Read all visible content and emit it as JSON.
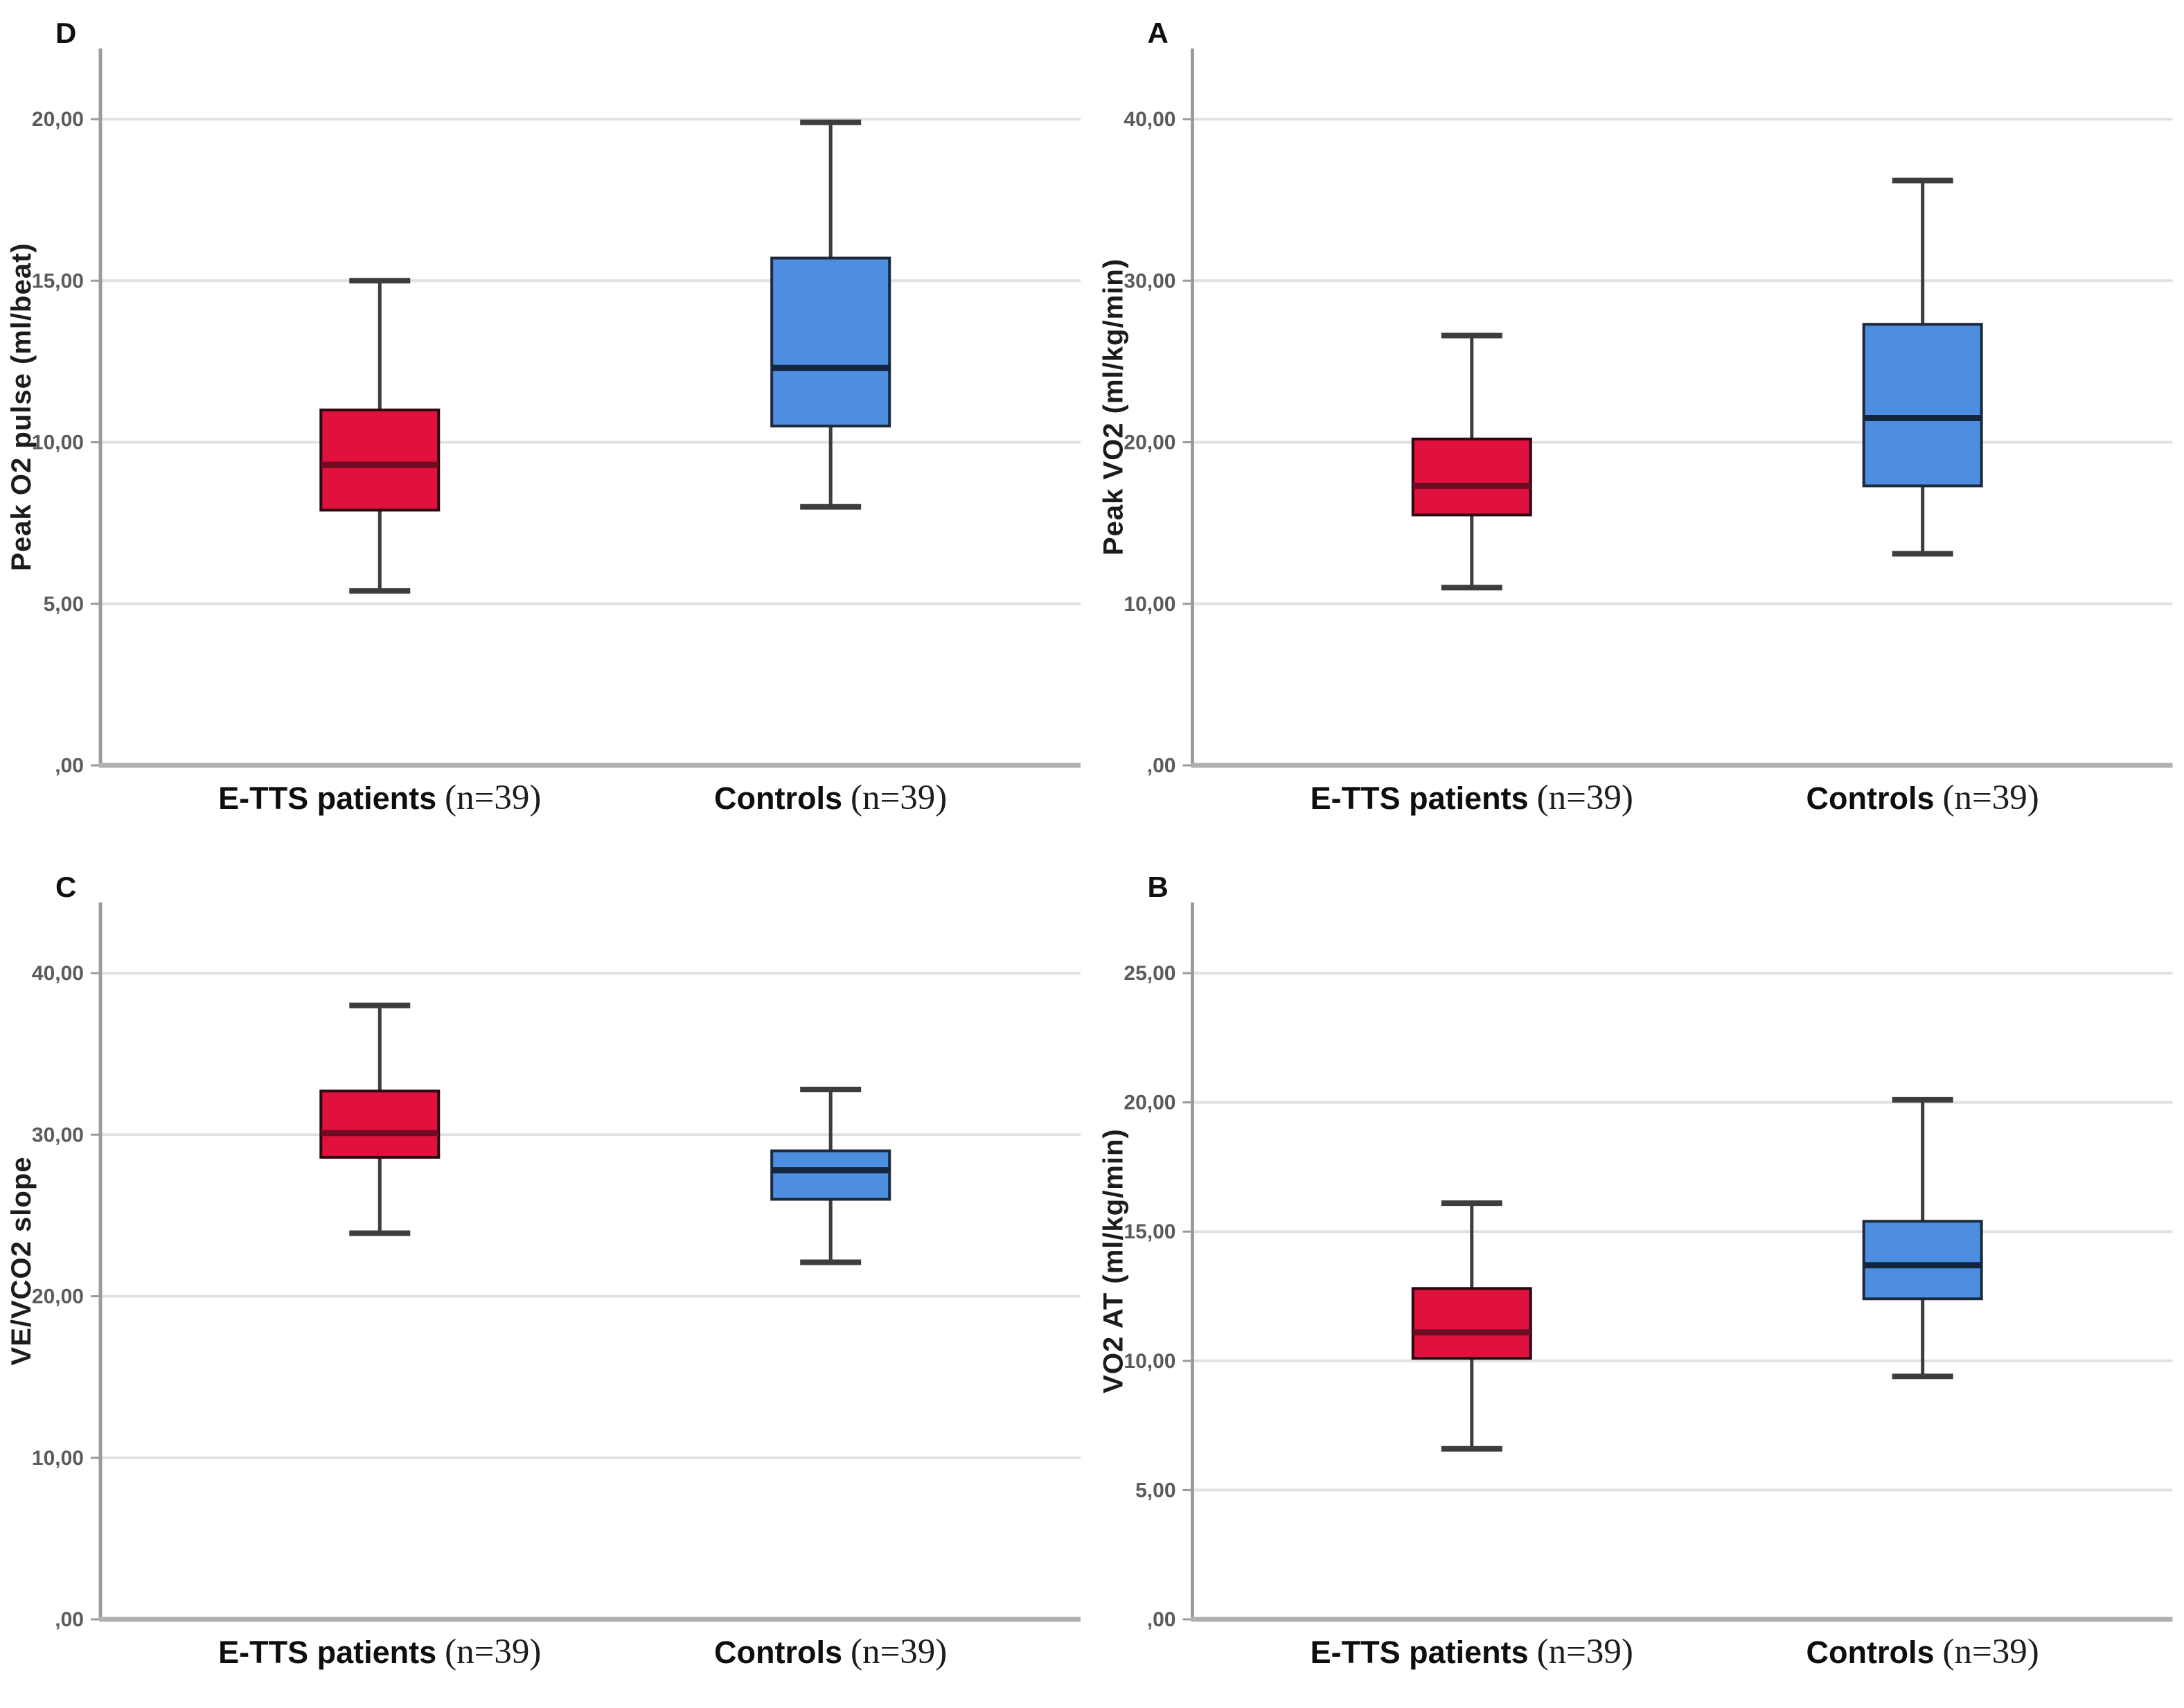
{
  "figure": {
    "description": "Four-panel SPSS-style box plot figure comparing E-TTS patients vs Controls on cardiopulmonary exercise testing variables",
    "groups": [
      {
        "name": "E-TTS patients",
        "n_label": "(n=39)",
        "color": "#e0113d"
      },
      {
        "name": "Controls",
        "n_label": "(n=39)",
        "color": "#4d8ee1"
      }
    ]
  },
  "chart_data": [
    {
      "type": "box",
      "panel_letter": "D",
      "grid_position": "top-left",
      "title": "",
      "xlabel": "",
      "ylabel": "Peak O2 pulse (ml/beat)",
      "ylim": [
        0,
        22.5
      ],
      "grid": true,
      "yticks": {
        "values": [
          0,
          5,
          10,
          15,
          20
        ],
        "labels": [
          ",00",
          "5,00",
          "10,00",
          "15,00",
          "20,00"
        ]
      },
      "categories": [
        {
          "name": "E-TTS patients",
          "suffix": "(n=39)"
        },
        {
          "name": "Controls",
          "suffix": "(n=39)"
        }
      ],
      "series": [
        {
          "name": "E-TTS patients",
          "fill": "#e0113d",
          "stroke": "#2e0711",
          "median_color": "#6e0c24",
          "box": {
            "min": 5.4,
            "q1": 7.9,
            "median": 9.3,
            "q3": 11.0,
            "max": 15.0
          }
        },
        {
          "name": "Controls",
          "fill": "#4d8ee1",
          "stroke": "#1b2a3c",
          "median_color": "#13263e",
          "box": {
            "min": 8.0,
            "q1": 10.5,
            "median": 12.3,
            "q3": 15.7,
            "max": 19.9
          }
        }
      ]
    },
    {
      "type": "box",
      "panel_letter": "A",
      "grid_position": "top-right",
      "title": "",
      "xlabel": "",
      "ylabel": "Peak VO2 (ml/kg/min)",
      "ylim": [
        0,
        45
      ],
      "grid": true,
      "yticks": {
        "values": [
          0,
          10,
          20,
          30,
          40
        ],
        "labels": [
          ",00",
          "10,00",
          "20,00",
          "30,00",
          "40,00"
        ]
      },
      "categories": [
        {
          "name": "E-TTS patients",
          "suffix": "(n=39)"
        },
        {
          "name": "Controls",
          "suffix": "(n=39)"
        }
      ],
      "series": [
        {
          "name": "E-TTS patients",
          "fill": "#e0113d",
          "stroke": "#2e0711",
          "median_color": "#6e0c24",
          "box": {
            "min": 11.0,
            "q1": 15.5,
            "median": 17.3,
            "q3": 20.2,
            "max": 26.6
          }
        },
        {
          "name": "Controls",
          "fill": "#4d8ee1",
          "stroke": "#1b2a3c",
          "median_color": "#13263e",
          "box": {
            "min": 13.1,
            "q1": 17.3,
            "median": 21.5,
            "q3": 27.3,
            "max": 36.2
          }
        }
      ]
    },
    {
      "type": "box",
      "panel_letter": "C",
      "grid_position": "bottom-left",
      "title": "",
      "xlabel": "",
      "ylabel": "VE/VCO2 slope",
      "ylim": [
        0,
        45
      ],
      "grid": true,
      "yticks": {
        "values": [
          0,
          10,
          20,
          30,
          40
        ],
        "labels": [
          ",00",
          "10,00",
          "20,00",
          "30,00",
          "40,00"
        ]
      },
      "categories": [
        {
          "name": "E-TTS patients",
          "suffix": "(n=39)"
        },
        {
          "name": "Controls",
          "suffix": "(n=39)"
        }
      ],
      "series": [
        {
          "name": "E-TTS patients",
          "fill": "#e0113d",
          "stroke": "#2e0711",
          "median_color": "#6e0c24",
          "box": {
            "min": 23.9,
            "q1": 28.6,
            "median": 30.1,
            "q3": 32.7,
            "max": 38.0
          }
        },
        {
          "name": "Controls",
          "fill": "#4d8ee1",
          "stroke": "#1b2a3c",
          "median_color": "#13263e",
          "box": {
            "min": 22.1,
            "q1": 26.0,
            "median": 27.8,
            "q3": 29.0,
            "max": 32.8
          }
        }
      ]
    },
    {
      "type": "box",
      "panel_letter": "B",
      "grid_position": "bottom-right",
      "title": "",
      "xlabel": "",
      "ylabel": "VO2 AT (ml/kg/min)",
      "ylim": [
        0,
        28
      ],
      "grid": true,
      "yticks": {
        "values": [
          0,
          5,
          10,
          15,
          20,
          25
        ],
        "labels": [
          ",00",
          "5,00",
          "10,00",
          "15,00",
          "20,00",
          "25,00"
        ]
      },
      "categories": [
        {
          "name": "E-TTS patients",
          "suffix": "(n=39)"
        },
        {
          "name": "Controls",
          "suffix": "(n=39)"
        }
      ],
      "series": [
        {
          "name": "E-TTS patients",
          "fill": "#e0113d",
          "stroke": "#2e0711",
          "median_color": "#6e0c24",
          "box": {
            "min": 6.6,
            "q1": 10.1,
            "median": 11.1,
            "q3": 12.8,
            "max": 16.1
          }
        },
        {
          "name": "Controls",
          "fill": "#4d8ee1",
          "stroke": "#1b2a3c",
          "median_color": "#13263e",
          "box": {
            "min": 9.4,
            "q1": 12.4,
            "median": 13.7,
            "q3": 15.4,
            "max": 20.1
          }
        }
      ]
    }
  ]
}
